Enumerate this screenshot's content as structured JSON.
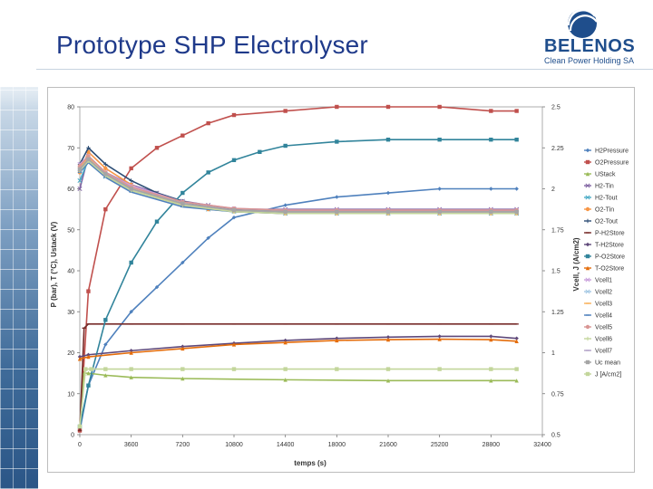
{
  "slide": {
    "title": "Prototype SHP Electrolyser",
    "brand": "BELENOS",
    "brand_subtitle": "Clean Power Holding SA"
  },
  "colors": {
    "title": "#1f3a8a",
    "brand": "#1f4e8c"
  },
  "chart_data": {
    "type": "scatter",
    "title": "",
    "xlabel": "temps (s)",
    "ylabel": "P (bar), T (°C), Ustack (V)",
    "y2label": "Vcell, J (A/cm2)",
    "xlim": [
      0,
      32400
    ],
    "ylim": [
      0,
      80
    ],
    "y2lim": [
      0.5,
      2.5
    ],
    "xticks": [
      0,
      3600,
      7200,
      10800,
      14400,
      18000,
      21600,
      25200,
      28800,
      32400
    ],
    "yticks": [
      0,
      10,
      20,
      30,
      40,
      50,
      60,
      70,
      80
    ],
    "y2ticks": [
      "0.5",
      "0.75",
      "1",
      "1.25",
      "1.5",
      "1.75",
      "2",
      "2.25",
      "2.5"
    ],
    "grid": false,
    "legend_position": "right",
    "series": [
      {
        "name": "H2Pressure",
        "axis": "left",
        "color": "#4f81bd",
        "marker": "diamond",
        "x": [
          0,
          600,
          1800,
          3600,
          5400,
          7200,
          9000,
          10800,
          14400,
          18000,
          21600,
          25200,
          28800,
          30600
        ],
        "y": [
          1,
          12,
          22,
          30,
          36,
          42,
          48,
          53,
          56,
          58,
          59,
          60,
          60,
          60
        ]
      },
      {
        "name": "O2Pressure",
        "axis": "left",
        "color": "#c0504d",
        "marker": "square",
        "x": [
          0,
          600,
          1800,
          3600,
          5400,
          7200,
          9000,
          10800,
          14400,
          18000,
          21600,
          25200,
          28800,
          30600
        ],
        "y": [
          1,
          35,
          55,
          65,
          70,
          73,
          76,
          78,
          79,
          80,
          80,
          80,
          79,
          79
        ]
      },
      {
        "name": "UStack",
        "axis": "left",
        "color": "#9bbb59",
        "marker": "triangle",
        "x": [
          0,
          300,
          600,
          1800,
          3600,
          7200,
          14400,
          21600,
          28800,
          30600
        ],
        "y": [
          2,
          15,
          15,
          14.5,
          14,
          13.7,
          13.4,
          13.2,
          13.2,
          13.2
        ]
      },
      {
        "name": "H2-Tin",
        "axis": "left",
        "color": "#8064a2",
        "marker": "x",
        "x": [
          0,
          600,
          1800,
          3600,
          5400,
          7200,
          9000,
          10800,
          14400,
          18000,
          21600,
          25200,
          28800,
          30600
        ],
        "y": [
          60,
          68,
          64,
          61,
          59,
          57,
          56,
          55,
          55,
          55,
          55,
          55,
          55,
          55
        ]
      },
      {
        "name": "H2-Tout",
        "axis": "left",
        "color": "#4bacc6",
        "marker": "x",
        "x": [
          0,
          600,
          1800,
          3600,
          5400,
          7200,
          9000,
          10800,
          14400,
          18000,
          21600,
          25200,
          28800,
          30600
        ],
        "y": [
          62,
          67,
          63,
          60,
          58,
          56,
          55,
          54.5,
          54,
          54,
          54,
          54,
          54,
          54
        ]
      },
      {
        "name": "O2-Tin",
        "axis": "left",
        "color": "#f79646",
        "marker": "circle",
        "x": [
          0,
          600,
          1800,
          3600,
          5400,
          7200,
          9000,
          10800,
          14400,
          18000,
          21600,
          25200,
          28800,
          30600
        ],
        "y": [
          64,
          69,
          65,
          61,
          58,
          56,
          55,
          54.5,
          54,
          54,
          54,
          54,
          54,
          54
        ]
      },
      {
        "name": "O2-Tout",
        "axis": "left",
        "color": "#2c4d75",
        "marker": "plus",
        "x": [
          0,
          600,
          1800,
          3600,
          5400,
          7200,
          9000,
          10800,
          14400,
          18000,
          21600,
          25200,
          28800,
          30600
        ],
        "y": [
          66,
          70,
          66,
          62,
          59,
          57,
          55.5,
          55,
          54.5,
          54.5,
          54.5,
          54.5,
          54.5,
          54.5
        ]
      },
      {
        "name": "P-H2Store",
        "axis": "left",
        "color": "#772c2a",
        "marker": "dash",
        "x": [
          0,
          300,
          600,
          3600,
          7200,
          10800,
          14400,
          18000,
          21600,
          25200,
          28800,
          30600
        ],
        "y": [
          1,
          26,
          27,
          27,
          27,
          27,
          27,
          27,
          27,
          27,
          27,
          27
        ]
      },
      {
        "name": "T-H2Store",
        "axis": "left",
        "color": "#5f497a",
        "marker": "diamond",
        "x": [
          0,
          600,
          3600,
          7200,
          10800,
          14400,
          18000,
          21600,
          25200,
          28800,
          30600
        ],
        "y": [
          19,
          19.5,
          20.5,
          21.5,
          22.3,
          23,
          23.5,
          23.8,
          24,
          24,
          23.5
        ]
      },
      {
        "name": "P-O2Store",
        "axis": "left",
        "color": "#31849b",
        "marker": "square",
        "x": [
          0,
          600,
          1800,
          3600,
          5400,
          7200,
          9000,
          10800,
          12600,
          14400,
          18000,
          21600,
          25200,
          28800,
          30600
        ],
        "y": [
          2,
          12,
          28,
          42,
          52,
          59,
          64,
          67,
          69,
          70.5,
          71.5,
          72,
          72,
          72,
          72
        ]
      },
      {
        "name": "T-O2Store",
        "axis": "left",
        "color": "#e46c0a",
        "marker": "triangle",
        "x": [
          0,
          600,
          3600,
          7200,
          10800,
          14400,
          18000,
          21600,
          25200,
          28800,
          30600
        ],
        "y": [
          18.5,
          19,
          20,
          21,
          22,
          22.5,
          23,
          23.2,
          23.3,
          23.2,
          22.8
        ]
      },
      {
        "name": "Vcell1",
        "axis": "right",
        "color": "#c9a0dc",
        "marker": "x",
        "x": [
          0,
          600,
          1800,
          3600,
          7200,
          10800,
          14400,
          18000,
          21600,
          25200,
          28800,
          30600
        ],
        "y": [
          2.15,
          2.2,
          2.1,
          2.02,
          1.92,
          1.88,
          1.87,
          1.87,
          1.87,
          1.87,
          1.87,
          1.87
        ]
      },
      {
        "name": "Vcell2",
        "axis": "right",
        "color": "#a5c8e4",
        "marker": "x",
        "x": [
          0,
          600,
          1800,
          3600,
          7200,
          10800,
          14400,
          18000,
          21600,
          25200,
          28800,
          30600
        ],
        "y": [
          2.12,
          2.18,
          2.09,
          2.0,
          1.91,
          1.87,
          1.86,
          1.86,
          1.86,
          1.86,
          1.86,
          1.86
        ]
      },
      {
        "name": "Vcell3",
        "axis": "right",
        "color": "#f9b25c",
        "marker": "dash",
        "x": [
          0,
          600,
          1800,
          3600,
          7200,
          10800,
          14400,
          18000,
          21600,
          25200,
          28800,
          30600
        ],
        "y": [
          2.13,
          2.19,
          2.08,
          1.99,
          1.9,
          1.86,
          1.85,
          1.85,
          1.85,
          1.85,
          1.85,
          1.85
        ]
      },
      {
        "name": "Vcell4",
        "axis": "right",
        "color": "#4f81bd",
        "marker": "dash",
        "x": [
          0,
          600,
          1800,
          3600,
          7200,
          10800,
          14400,
          18000,
          21600,
          25200,
          28800,
          30600
        ],
        "y": [
          2.1,
          2.16,
          2.07,
          1.98,
          1.89,
          1.86,
          1.85,
          1.85,
          1.85,
          1.85,
          1.85,
          1.85
        ]
      },
      {
        "name": "Vcell5",
        "axis": "right",
        "color": "#d99694",
        "marker": "circle",
        "x": [
          0,
          600,
          1800,
          3600,
          7200,
          10800,
          14400,
          18000,
          21600,
          25200,
          28800,
          30600
        ],
        "y": [
          2.14,
          2.2,
          2.1,
          2.01,
          1.92,
          1.88,
          1.87,
          1.87,
          1.87,
          1.87,
          1.87,
          1.87
        ]
      },
      {
        "name": "Vcell6",
        "axis": "right",
        "color": "#c3d69b",
        "marker": "plus",
        "x": [
          0,
          600,
          1800,
          3600,
          7200,
          10800,
          14400,
          18000,
          21600,
          25200,
          28800,
          30600
        ],
        "y": [
          2.11,
          2.17,
          2.08,
          1.99,
          1.9,
          1.86,
          1.85,
          1.85,
          1.85,
          1.85,
          1.85,
          1.85
        ]
      },
      {
        "name": "Vcell7",
        "axis": "right",
        "color": "#b2a2c7",
        "marker": "dash",
        "x": [
          0,
          600,
          1800,
          3600,
          7200,
          10800,
          14400,
          18000,
          21600,
          25200,
          28800,
          30600
        ],
        "y": [
          2.12,
          2.18,
          2.09,
          2.0,
          1.91,
          1.87,
          1.86,
          1.86,
          1.86,
          1.86,
          1.86,
          1.86
        ]
      },
      {
        "name": "Uc mean",
        "axis": "right",
        "color": "#a5a5a5",
        "marker": "square",
        "x": [
          0,
          600,
          1800,
          3600,
          7200,
          10800,
          14400,
          18000,
          21600,
          25200,
          28800,
          30600
        ],
        "y": [
          2.12,
          2.18,
          2.09,
          2.0,
          1.91,
          1.87,
          1.86,
          1.86,
          1.86,
          1.86,
          1.86,
          1.86
        ]
      },
      {
        "name": "J [A/cm2]",
        "axis": "right",
        "color": "#c3d69b",
        "marker": "square",
        "x": [
          0,
          400,
          800,
          1800,
          3600,
          7200,
          10800,
          14400,
          18000,
          21600,
          25200,
          28800,
          30600
        ],
        "y": [
          0.55,
          0.9,
          0.9,
          0.9,
          0.9,
          0.9,
          0.9,
          0.9,
          0.9,
          0.9,
          0.9,
          0.9,
          0.9
        ]
      }
    ]
  }
}
